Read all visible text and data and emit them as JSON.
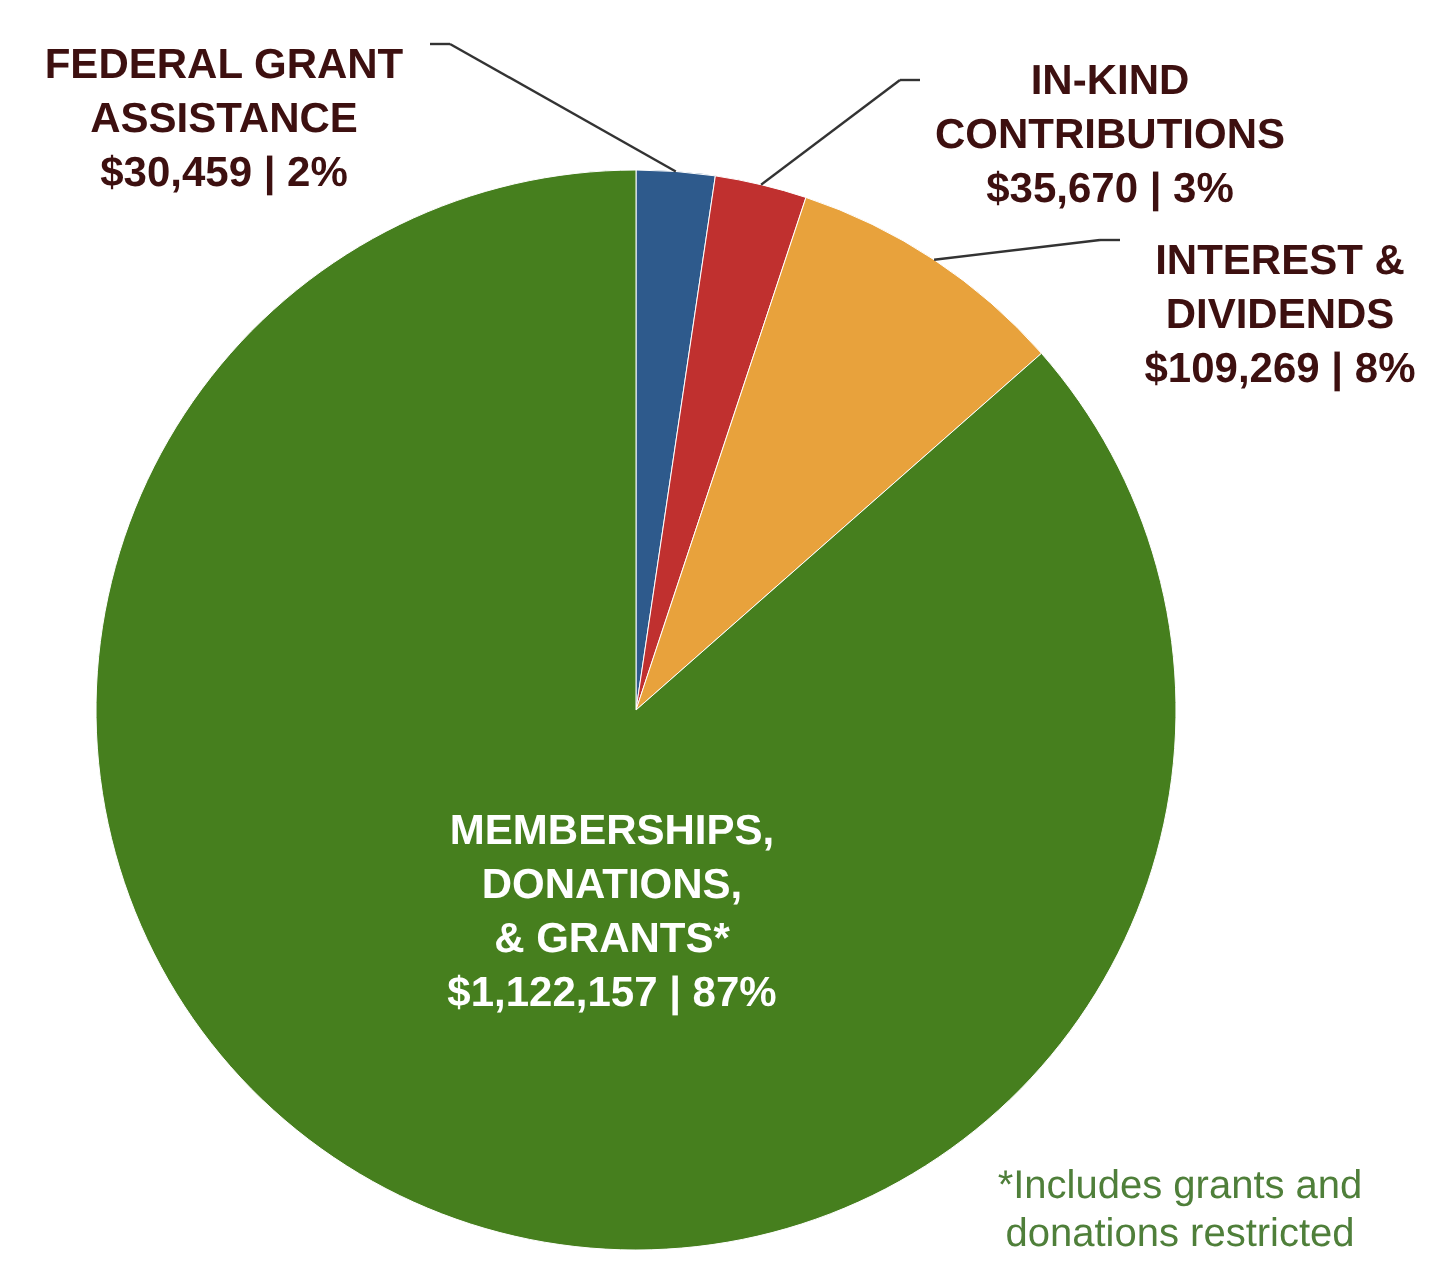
{
  "chart_data": {
    "type": "pie",
    "categories": [
      "FEDERAL GRANT ASSISTANCE",
      "IN-KIND CONTRIBUTIONS",
      "INTEREST & DIVIDENDS",
      "MEMBERSHIPS, DONATIONS, & GRANTS*"
    ],
    "values": [
      30459,
      35670,
      109269,
      1122157
    ],
    "value_labels": [
      "$30,459 | 2%",
      "$35,670 | 3%",
      "$109,269 | 8%",
      "$1,122,157 | 87%"
    ],
    "colors": [
      "#2e5a8c",
      "#c0302f",
      "#e8a23c",
      "#467f1e"
    ],
    "annotations": [
      "*Includes grants and donations restricted"
    ]
  }
}
